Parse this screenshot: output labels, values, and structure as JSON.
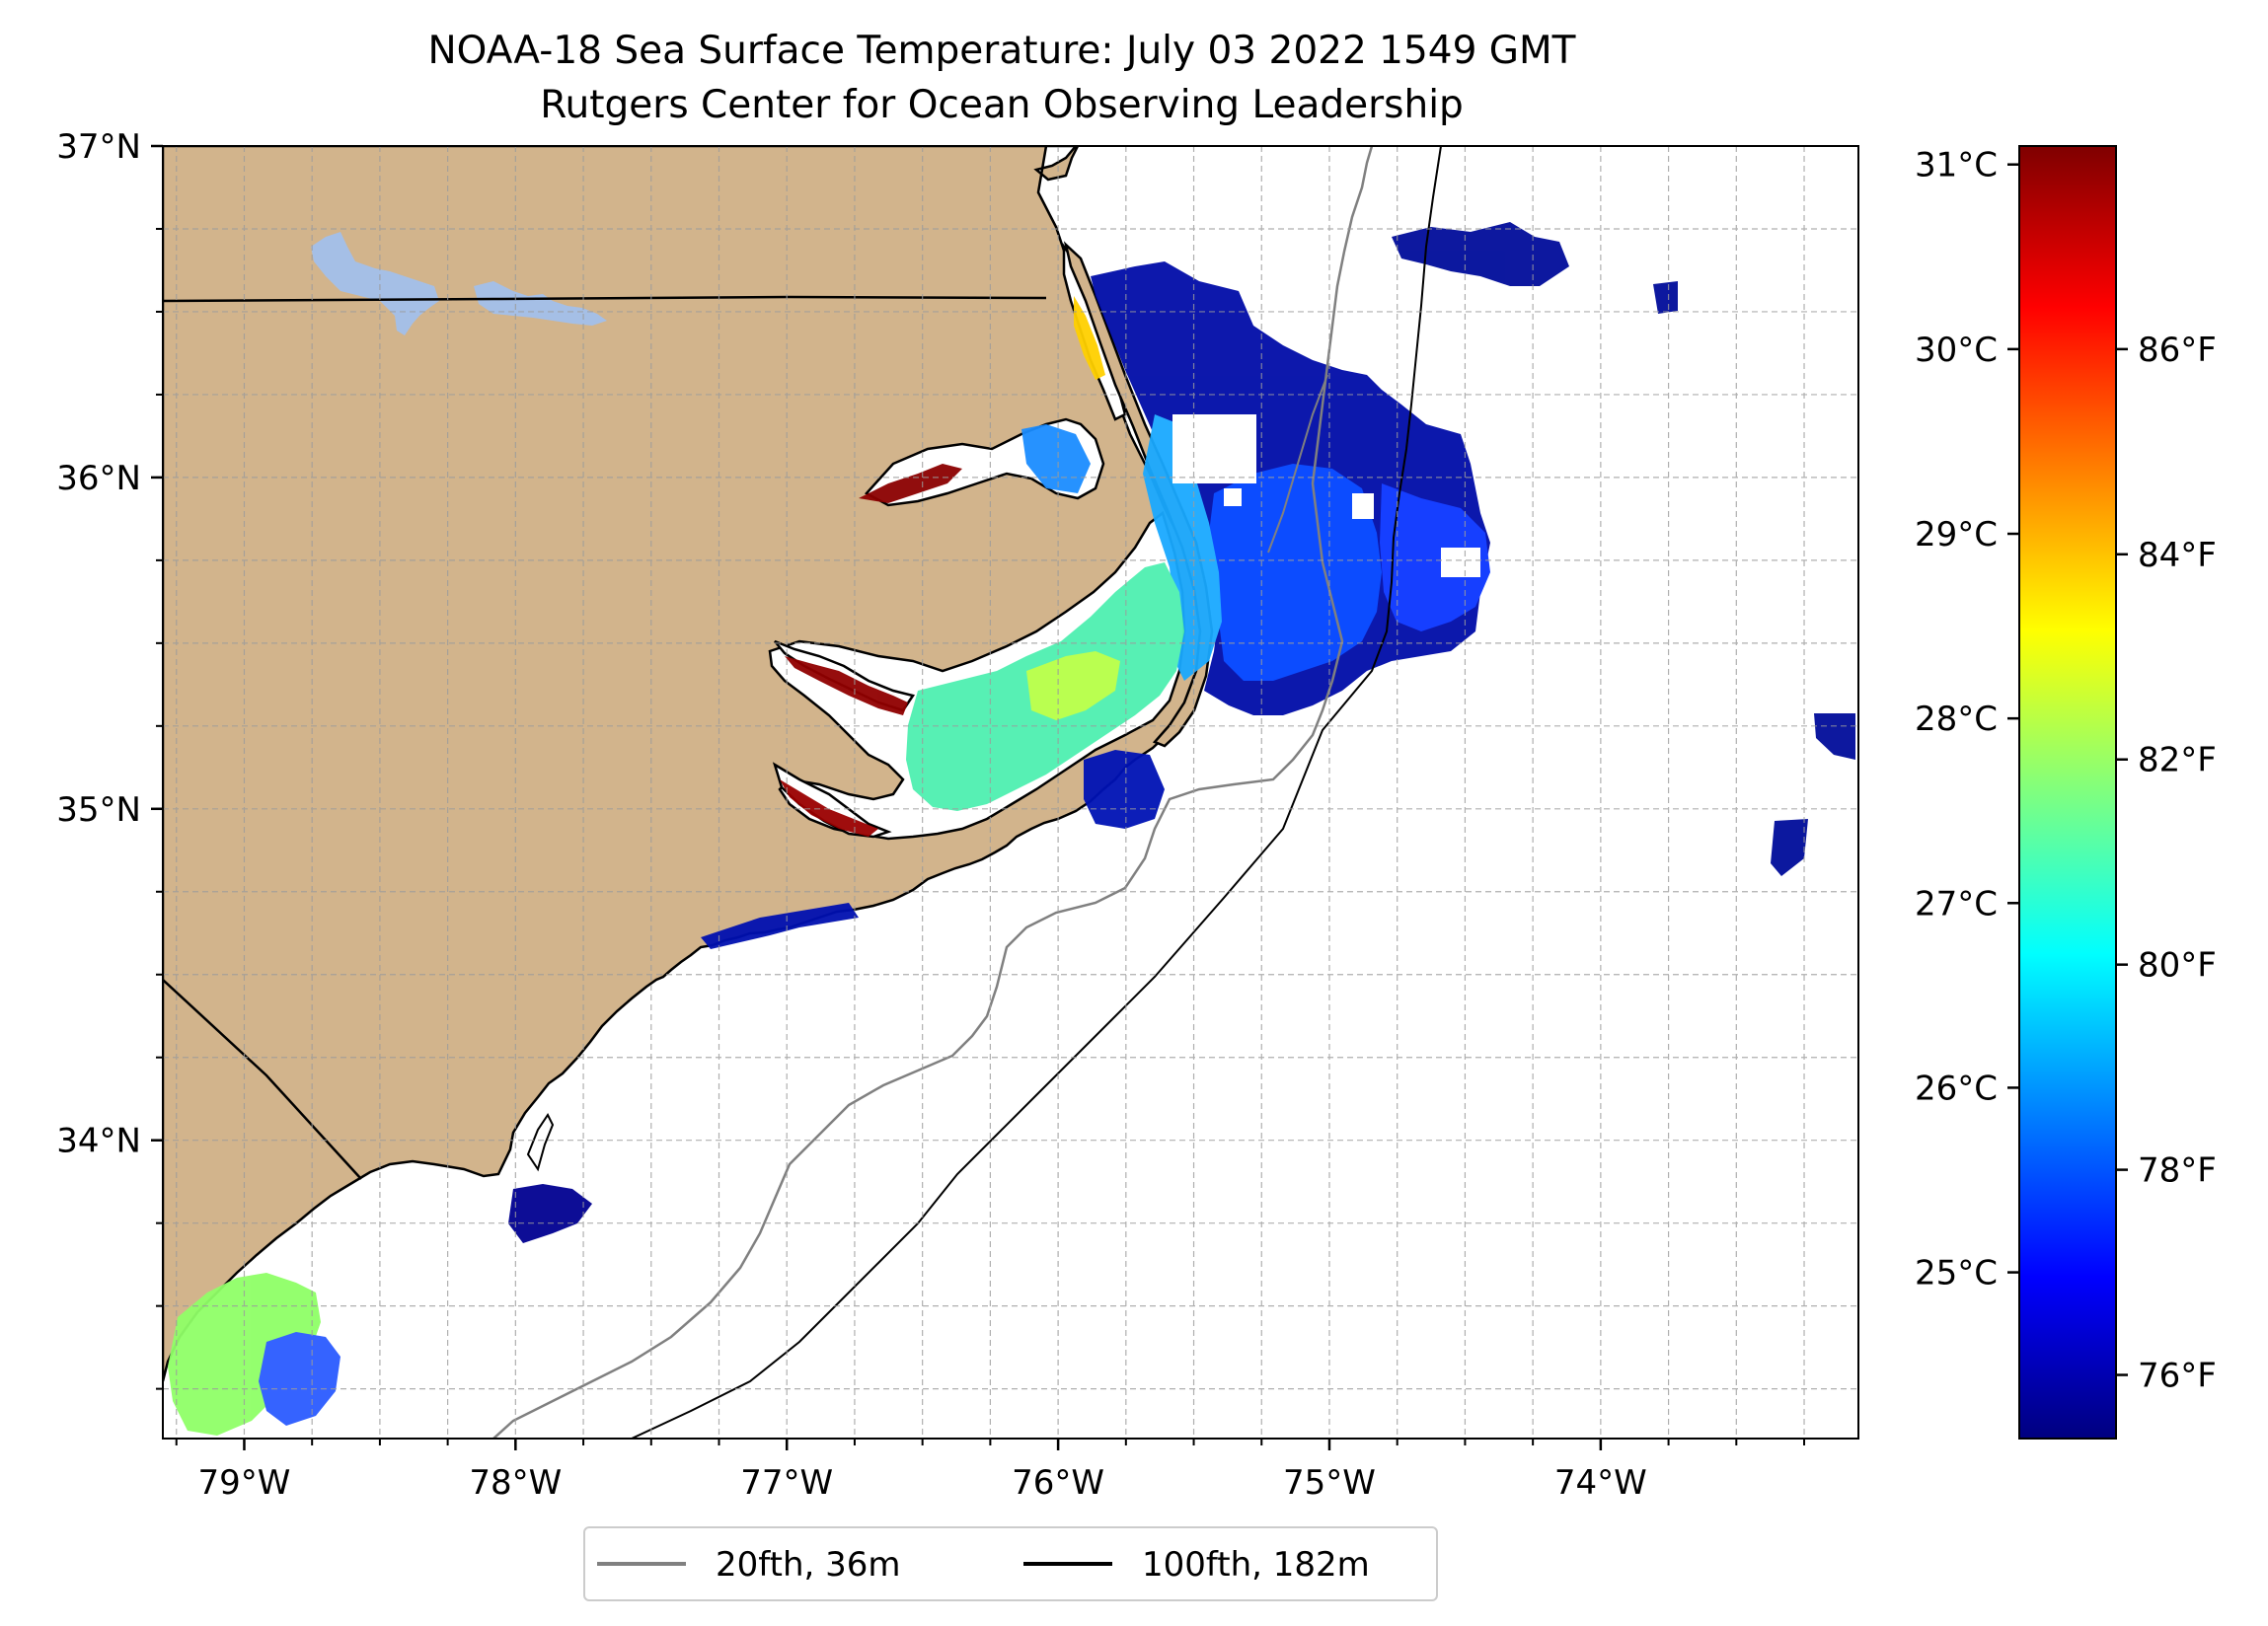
{
  "title": {
    "line1": "NOAA-18 Sea Surface Temperature: July 03 2022 1549 GMT",
    "line2": "Rutgers Center for Ocean Observing Leadership"
  },
  "map": {
    "lon_range": [
      -79.3,
      -73.05
    ],
    "lat_range": [
      33.1,
      37.0
    ],
    "lon_ticks": [
      {
        "value": -79,
        "label": "79°W"
      },
      {
        "value": -78,
        "label": "78°W"
      },
      {
        "value": -77,
        "label": "77°W"
      },
      {
        "value": -76,
        "label": "76°W"
      },
      {
        "value": -75,
        "label": "75°W"
      },
      {
        "value": -74,
        "label": "74°W"
      }
    ],
    "lat_ticks": [
      {
        "value": 37,
        "label": "37°N"
      },
      {
        "value": 36,
        "label": "36°N"
      },
      {
        "value": 35,
        "label": "35°N"
      },
      {
        "value": 34,
        "label": "34°N"
      }
    ],
    "minor_grid_step_deg": 0.25,
    "land_color": "#d2b48c",
    "water_body_color": "#a5bfe6",
    "gridlines": true
  },
  "legend": {
    "placement": "bottom-center",
    "items": [
      {
        "label": "20fth, 36m",
        "color": "#808080"
      },
      {
        "label": "100fth, 182m",
        "color": "#000000"
      }
    ]
  },
  "colorbar": {
    "colormap": "jet",
    "celsius_range": [
      24.1,
      31.1
    ],
    "celsius_ticks": [
      {
        "value": 25,
        "label": "25°C"
      },
      {
        "value": 26,
        "label": "26°C"
      },
      {
        "value": 27,
        "label": "27°C"
      },
      {
        "value": 28,
        "label": "28°C"
      },
      {
        "value": 29,
        "label": "29°C"
      },
      {
        "value": 30,
        "label": "30°C"
      },
      {
        "value": 31,
        "label": "31°C"
      }
    ],
    "fahrenheit_ticks": [
      {
        "value": 76,
        "label": "76°F"
      },
      {
        "value": 78,
        "label": "78°F"
      },
      {
        "value": 80,
        "label": "80°F"
      },
      {
        "value": 82,
        "label": "82°F"
      },
      {
        "value": 84,
        "label": "84°F"
      },
      {
        "value": 86,
        "label": "86°F"
      }
    ],
    "colors": [
      "#00007f",
      "#0000ff",
      "#007fff",
      "#00ffff",
      "#7fff7f",
      "#ffff00",
      "#ff7f00",
      "#ff0000",
      "#7f0000"
    ]
  }
}
